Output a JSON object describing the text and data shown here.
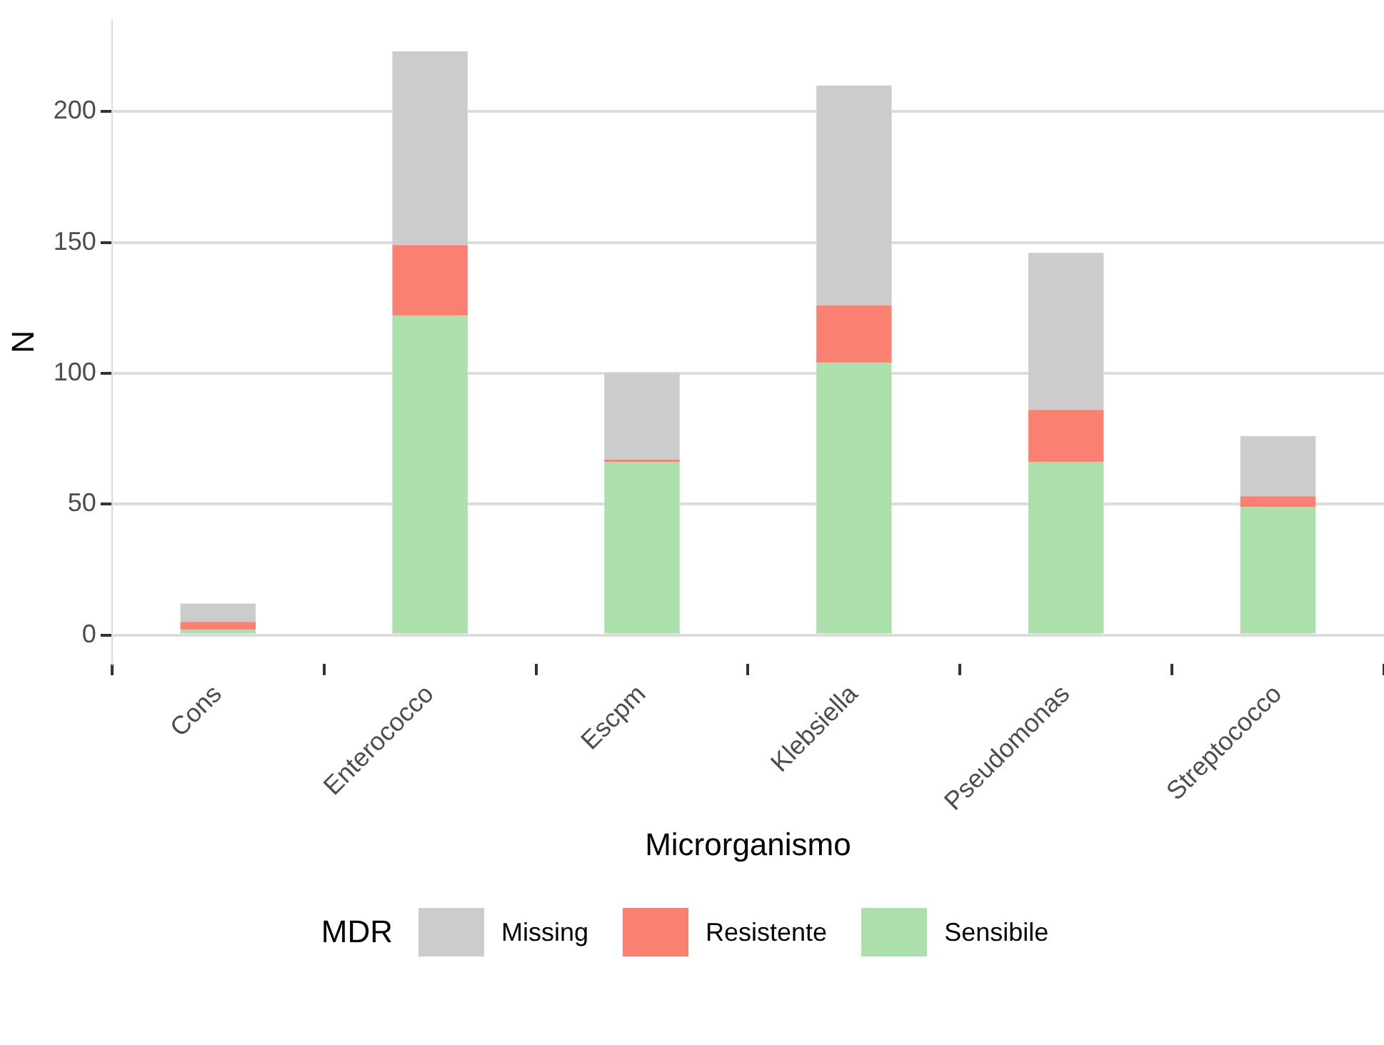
{
  "chart_data": {
    "type": "bar",
    "xlabel": "Microrganismo",
    "ylabel": "N",
    "legend_title": "MDR",
    "categories": [
      "Cons",
      "Enterococco",
      "Escpm",
      "Klebsiella",
      "Pseudomonas",
      "Streptococco"
    ],
    "stacked": true,
    "ylim": [
      -11,
      235
    ],
    "yticks": [
      0,
      50,
      100,
      150,
      200
    ],
    "grid": "y",
    "legend": "bottom",
    "series": [
      {
        "name": "Sensibile",
        "color": "#abdfab",
        "values": [
          2,
          122,
          66,
          104,
          66,
          49
        ]
      },
      {
        "name": "Resistente",
        "color": "#fa8072",
        "values": [
          3,
          27,
          1,
          22,
          20,
          4
        ]
      },
      {
        "name": "Missing",
        "color": "#cccccc",
        "values": [
          7,
          74,
          33,
          84,
          60,
          23
        ]
      }
    ]
  }
}
